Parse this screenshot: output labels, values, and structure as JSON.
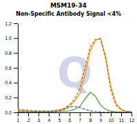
{
  "chart_data": {
    "type": "line",
    "title": "MSM19-34",
    "subtitle": "Non-Specific Antibody Signal <4%",
    "x": [
      1,
      1.5,
      2,
      2.5,
      3,
      3.5,
      4,
      4.5,
      5,
      5.5,
      6,
      6.5,
      7,
      7.5,
      8,
      8.5,
      9,
      9.5,
      10,
      10.5,
      11,
      11.5,
      12
    ],
    "xlim": [
      1,
      12
    ],
    "ylim": [
      0,
      1.2
    ],
    "xticks": [
      1,
      2,
      3,
      4,
      5,
      6,
      7,
      8,
      9,
      10,
      11,
      12
    ],
    "yticks": [
      {
        "value": 0,
        "label": "0.0"
      },
      0.2,
      0.4,
      0.6,
      0.8,
      {
        "value": 1.0,
        "label": "1.0"
      },
      1.2
    ],
    "series": [
      {
        "color": "#E8A020",
        "line_style": "solid",
        "values": [
          0.03,
          0.025,
          0.02,
          0.018,
          0.015,
          0.015,
          0.015,
          0.02,
          0.03,
          0.04,
          0.08,
          0.15,
          0.25,
          0.5,
          0.82,
          0.97,
          1.0,
          0.75,
          0.35,
          0.12,
          0.04,
          0.015,
          0.01
        ]
      },
      {
        "color": "#CC6600",
        "line_style": "dashed",
        "values": [
          0.04,
          0.035,
          0.028,
          0.022,
          0.018,
          0.016,
          0.016,
          0.022,
          0.035,
          0.055,
          0.1,
          0.18,
          0.32,
          0.6,
          0.88,
          0.98,
          0.99,
          0.72,
          0.3,
          0.1,
          0.035,
          0.012,
          0.008
        ]
      },
      {
        "color": "#4AA832",
        "line_style": "solid",
        "values": [
          0.01,
          0.01,
          0.008,
          0.008,
          0.008,
          0.008,
          0.008,
          0.01,
          0.012,
          0.015,
          0.02,
          0.04,
          0.08,
          0.18,
          0.27,
          0.22,
          0.1,
          0.04,
          0.015,
          0.008,
          0.005,
          0.003,
          0.002
        ]
      },
      {
        "color": "#5555BB",
        "line_style": "dashed",
        "values": [
          0.005,
          0.005,
          0.005,
          0.005,
          0.005,
          0.005,
          0.005,
          0.008,
          0.015,
          0.04,
          0.07,
          0.08,
          0.065,
          0.04,
          0.02,
          0.01,
          0.005,
          0.003,
          0.002,
          0.002,
          0.001,
          0.001,
          0.001
        ]
      }
    ],
    "annotations": [
      {
        "text": "Q",
        "color": "#D4D4E8"
      }
    ]
  }
}
